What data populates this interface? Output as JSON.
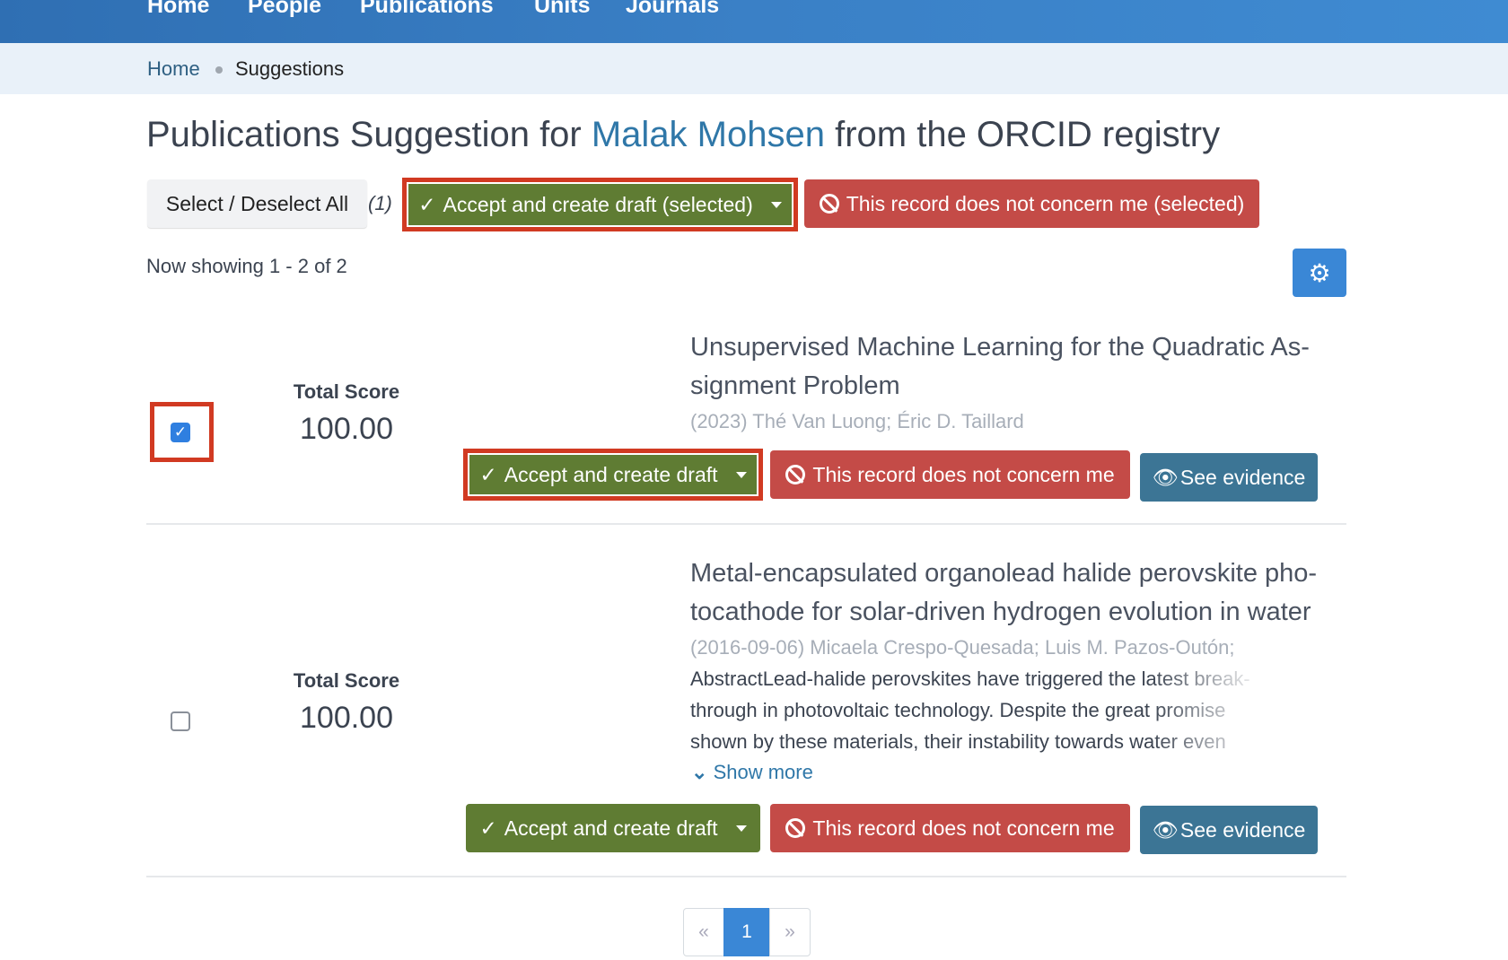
{
  "nav": {
    "items": [
      "Home",
      "People",
      "Publications",
      "Units",
      "Journals"
    ]
  },
  "breadcrumb": {
    "home": "Home",
    "current": "Suggestions"
  },
  "page": {
    "title_prefix": "Publications Suggestion for ",
    "person": "Malak Mohsen",
    "title_suffix": " from the ORCID registry"
  },
  "toolbar": {
    "select_all": "Select / Deselect All",
    "selected_count": "(1)",
    "accept_selected": "Accept and create draft (selected)",
    "reject_selected": "This record does not concern me (selected)"
  },
  "showing": "Now showing 1 - 2 of 2",
  "colors": {
    "accept": "#5f7c33",
    "reject": "#c44b47",
    "evidence": "#3c7595",
    "highlight": "#d13a22",
    "primary": "#3a87d6"
  },
  "suggestions": [
    {
      "checked": true,
      "score_label": "Total Score",
      "score": "100.00",
      "title_l1": "Unsupervised Machine Learning for the Quadratic As-",
      "title_l2": "signment Problem",
      "meta": "(2023) Thé Van Luong; Éric D. Taillard",
      "accept": "Accept and create draft",
      "reject": "This record does not concern me",
      "evidence": "See evidence"
    },
    {
      "checked": false,
      "score_label": "Total Score",
      "score": "100.00",
      "title_l1": "Metal-encapsulated organolead halide perovskite pho-",
      "title_l2": "tocathode for solar-driven hydrogen evolution in water",
      "meta": "(2016-09-06) Micaela Crespo-Quesada; Luis M. Pazos-Outón;",
      "abstract": [
        "AbstractLead-halide perovskites have triggered the latest break-",
        "through in photovoltaic technology. Despite the great promise",
        "shown by these materials, their instability towards water even"
      ],
      "show_more": "Show more",
      "accept": "Accept and create draft",
      "reject": "This record does not concern me",
      "evidence": "See evidence"
    }
  ],
  "pagination": {
    "prev": "«",
    "current": "1",
    "next": "»"
  }
}
